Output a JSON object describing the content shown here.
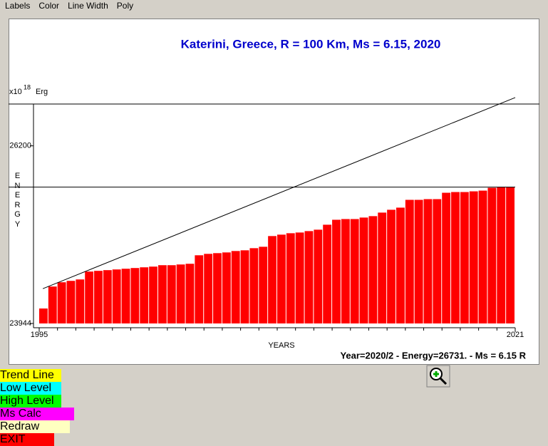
{
  "menu": [
    "Labels",
    "Color",
    "Line Width",
    "Poly"
  ],
  "chart_data": {
    "type": "bar",
    "title": "Katerini, Greece, R = 100 Km, Ms = 6.15, 2020",
    "y_unit_base": "x10",
    "y_unit_exp": "18",
    "y_unit": "Erg",
    "ylabel": "ENERGY",
    "xlabel": "YEARS",
    "x": [
      1995.0,
      1995.5,
      1996.0,
      1996.5,
      1997.0,
      1997.5,
      1998.0,
      1998.5,
      1999.0,
      1999.5,
      2000.0,
      2000.5,
      2001.0,
      2001.5,
      2002.0,
      2002.5,
      2003.0,
      2003.5,
      2004.0,
      2004.5,
      2005.0,
      2005.5,
      2006.0,
      2006.5,
      2007.0,
      2007.5,
      2008.0,
      2008.5,
      2009.0,
      2009.5,
      2010.0,
      2010.5,
      2011.0,
      2011.5,
      2012.0,
      2012.5,
      2013.0,
      2013.5,
      2014.0,
      2014.5,
      2015.0,
      2015.5,
      2016.0,
      2016.5,
      2017.0,
      2017.5,
      2018.0,
      2018.5,
      2019.0,
      2019.5,
      2020.0,
      2020.5
    ],
    "values": [
      24134,
      24413,
      24467,
      24485,
      24503,
      24603,
      24612,
      24621,
      24630,
      24639,
      24648,
      24657,
      24666,
      24684,
      24684,
      24693,
      24702,
      24810,
      24828,
      24837,
      24846,
      24864,
      24873,
      24900,
      24918,
      25054,
      25072,
      25090,
      25099,
      25117,
      25135,
      25198,
      25261,
      25270,
      25270,
      25289,
      25307,
      25352,
      25388,
      25415,
      25514,
      25514,
      25523,
      25523,
      25604,
      25613,
      25613,
      25622,
      25631,
      25667,
      25676,
      25676
    ],
    "bar_width": 0.5,
    "color": "#ff0000",
    "xlim": [
      1995,
      2021
    ],
    "xticks": [
      1995,
      2021
    ],
    "ylim": [
      23944,
      26731
    ],
    "yticks": [
      23944,
      26200
    ],
    "reference_line": 25676,
    "trend_line": {
      "x": [
        1995.2,
        2021
      ],
      "values": [
        24386,
        26813
      ],
      "color": "#000000"
    },
    "status": "Year=2020/2 - Energy=26731. - Ms = 6.15 R"
  },
  "buttons": [
    {
      "label": "Trend Line",
      "color": "#ffff00"
    },
    {
      "label": "Low Level",
      "color": "#00ffff"
    },
    {
      "label": "High Level",
      "color": "#00ff00"
    },
    {
      "label": "Ms Calc",
      "color": "#ff00ff"
    },
    {
      "label": "Redraw",
      "color": "#ffffc0"
    },
    {
      "label": "EXIT",
      "color": "#ff0000"
    }
  ]
}
